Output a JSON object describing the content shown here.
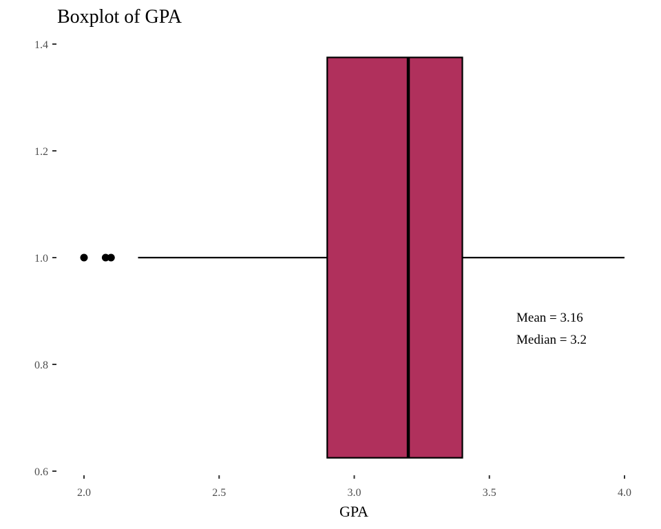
{
  "chart_data": {
    "type": "boxplot",
    "title": "Boxplot of GPA",
    "xlabel": "GPA",
    "ylabel": "",
    "xlim": [
      2.0,
      4.0
    ],
    "ylim": [
      0.6,
      1.4
    ],
    "x_ticks": [
      "2.0",
      "2.5",
      "3.0",
      "3.5",
      "4.0"
    ],
    "y_ticks": [
      "0.6",
      "0.8",
      "1.0",
      "1.2",
      "1.4"
    ],
    "box": {
      "y_center": 1.0,
      "y_range": [
        0.625,
        1.375
      ],
      "q1": 2.9,
      "median": 3.2,
      "q3": 3.4,
      "whisker_low": 2.2,
      "whisker_high": 4.0,
      "outliers": [
        2.0,
        2.08,
        2.1
      ],
      "fill_color": "#B0305C"
    },
    "annotations": [
      "Mean = 3.16",
      "Median = 3.2"
    ],
    "grid": false
  }
}
